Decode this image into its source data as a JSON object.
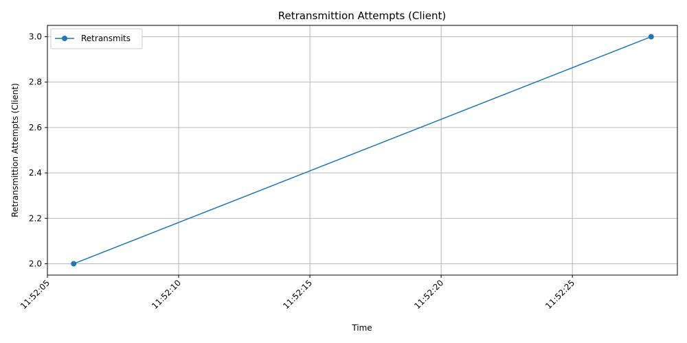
{
  "chart_data": {
    "type": "line",
    "title": "Retransmittion Attempts (Client)",
    "xlabel": "Time",
    "ylabel": "Retransmittion Attempts (Client)",
    "x_ticks": [
      "11:52:05",
      "11:52:10",
      "11:52:15",
      "11:52:20",
      "11:52:25"
    ],
    "x_tick_seconds": [
      5,
      10,
      15,
      20,
      25
    ],
    "xlim_seconds": [
      5.0,
      29.0
    ],
    "y_ticks": [
      "2.0",
      "2.2",
      "2.4",
      "2.6",
      "2.8",
      "3.0"
    ],
    "y_tick_values": [
      2.0,
      2.2,
      2.4,
      2.6,
      2.8,
      3.0
    ],
    "ylim": [
      1.95,
      3.05
    ],
    "grid": true,
    "legend_position": "top-left",
    "series": [
      {
        "name": "Retransmits",
        "color": "#1f77b4",
        "marker": "circle",
        "x": [
          "11:52:06",
          "11:52:28"
        ],
        "x_seconds": [
          6,
          28
        ],
        "y": [
          2,
          3
        ]
      }
    ]
  }
}
